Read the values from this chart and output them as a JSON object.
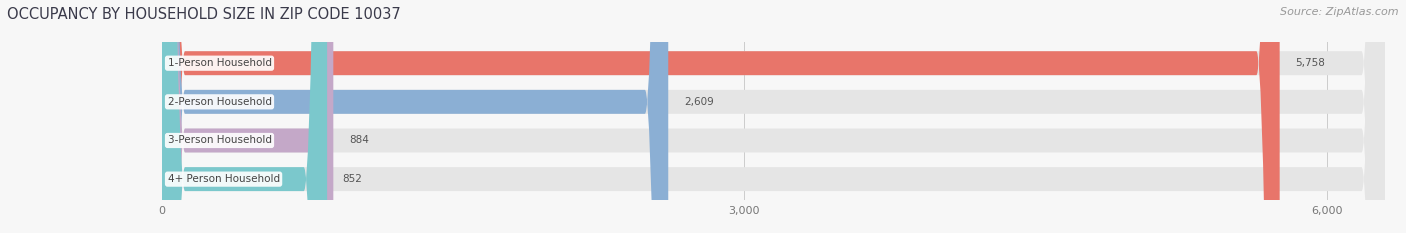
{
  "title": "OCCUPANCY BY HOUSEHOLD SIZE IN ZIP CODE 10037",
  "source": "Source: ZipAtlas.com",
  "categories": [
    "1-Person Household",
    "2-Person Household",
    "3-Person Household",
    "4+ Person Household"
  ],
  "values": [
    5758,
    2609,
    884,
    852
  ],
  "bar_colors": [
    "#E8756A",
    "#8BAFD4",
    "#C4A8C8",
    "#7BC8CC"
  ],
  "xlim": [
    0,
    6300
  ],
  "xticks": [
    0,
    3000,
    6000
  ],
  "background_color": "#f7f7f7",
  "bar_background": "#e5e5e5",
  "title_fontsize": 10.5,
  "source_fontsize": 8,
  "label_fontsize": 7.5,
  "value_fontsize": 7.5,
  "title_color": "#3a3a4a",
  "source_color": "#999999",
  "label_color": "#444444",
  "value_color": "#555555"
}
